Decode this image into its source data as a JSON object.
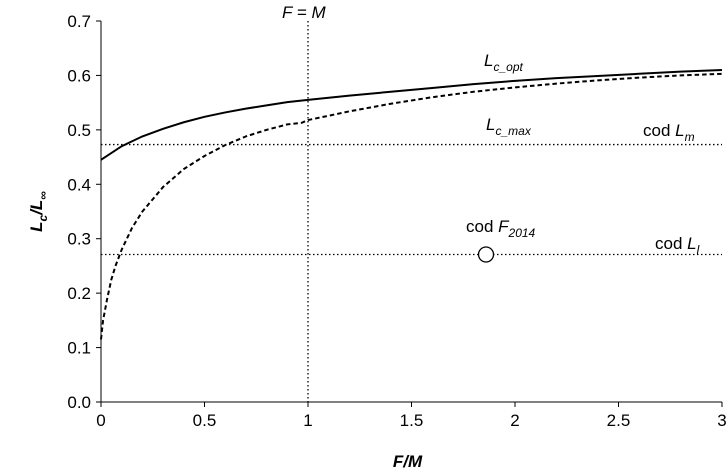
{
  "chart_data": {
    "type": "line",
    "xlabel": "F/M",
    "ylabel": {
      "main": "L",
      "sub1": "c",
      "mid": "/L",
      "sub2": "∞"
    },
    "xlim": [
      0,
      3
    ],
    "ylim": [
      0,
      0.7
    ],
    "xticks": [
      0,
      0.5,
      1,
      1.5,
      2,
      2.5,
      3
    ],
    "xtick_labels": [
      "0",
      "0.5",
      "1",
      "1.5",
      "2",
      "2.5",
      "3"
    ],
    "yticks": [
      0,
      0.1,
      0.2,
      0.3,
      0.4,
      0.5,
      0.6,
      0.7
    ],
    "ytick_labels": [
      "0.0",
      "0.1",
      "0.2",
      "0.3",
      "0.4",
      "0.5",
      "0.6",
      "0.7"
    ],
    "grid": false,
    "series": [
      {
        "name": {
          "main": "L",
          "sub": "c_opt"
        },
        "style": "solid",
        "x": [
          0,
          0.1,
          0.2,
          0.3,
          0.4,
          0.5,
          0.6,
          0.7,
          0.8,
          0.9,
          1.0,
          1.2,
          1.4,
          1.6,
          1.8,
          2.0,
          2.2,
          2.4,
          2.6,
          2.8,
          3.0
        ],
        "y": [
          0.445,
          0.47,
          0.488,
          0.502,
          0.514,
          0.524,
          0.532,
          0.539,
          0.545,
          0.551,
          0.555,
          0.563,
          0.57,
          0.577,
          0.584,
          0.59,
          0.595,
          0.599,
          0.603,
          0.607,
          0.61
        ]
      },
      {
        "name": {
          "main": "L",
          "sub": "c_max"
        },
        "style": "dashed",
        "x": [
          0,
          0.01,
          0.03,
          0.05,
          0.07,
          0.1,
          0.15,
          0.2,
          0.3,
          0.4,
          0.5,
          0.6,
          0.7,
          0.8,
          0.9,
          0.97,
          1.0,
          1.2,
          1.4,
          1.6,
          1.8,
          2.0,
          2.2,
          2.4,
          2.6,
          2.8,
          3.0
        ],
        "y": [
          0.115,
          0.15,
          0.19,
          0.225,
          0.25,
          0.28,
          0.32,
          0.35,
          0.395,
          0.428,
          0.452,
          0.472,
          0.488,
          0.5,
          0.51,
          0.513,
          0.518,
          0.534,
          0.548,
          0.56,
          0.57,
          0.578,
          0.585,
          0.591,
          0.596,
          0.6,
          0.603
        ]
      }
    ],
    "reference_lines": [
      {
        "orientation": "horizontal",
        "y": 0.473,
        "style": "dotted",
        "label": {
          "text": "cod ",
          "main": "L",
          "sub": "m"
        }
      },
      {
        "orientation": "horizontal",
        "y": 0.271,
        "style": "dotted",
        "label": {
          "text": "cod ",
          "main": "L",
          "sub": "l"
        }
      },
      {
        "orientation": "vertical",
        "x": 1.0,
        "style": "dotted",
        "label": "F = M"
      }
    ],
    "points": [
      {
        "x": 1.86,
        "y": 0.271,
        "marker": "open-circle",
        "label": {
          "text": "cod ",
          "main": "F",
          "sub": "2014"
        }
      }
    ]
  }
}
